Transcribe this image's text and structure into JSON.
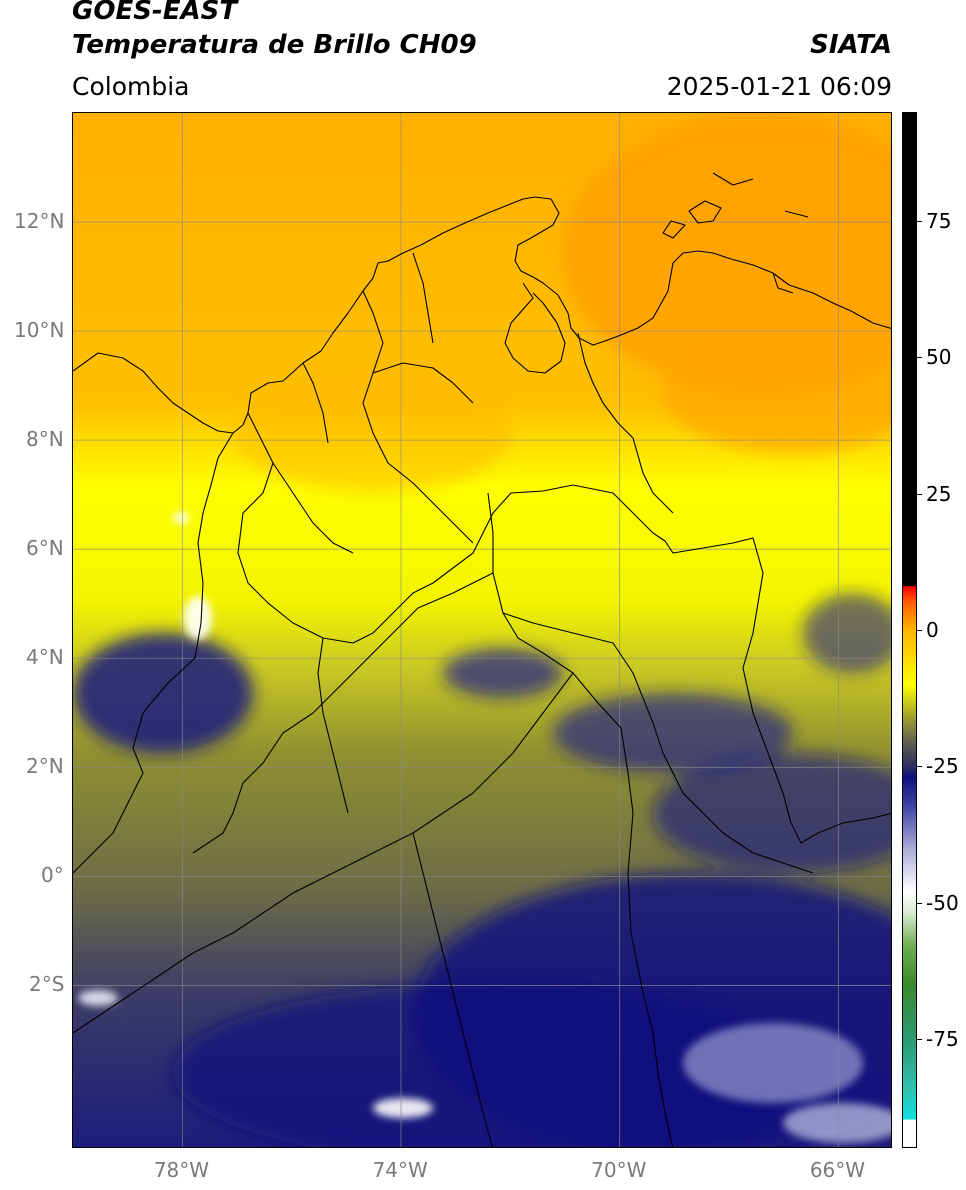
{
  "header": {
    "satellite": "GOES-EAST",
    "product": "Temperatura de Brillo CH09",
    "region": "Colombia",
    "org": "SIATA",
    "datetime": "2025-01-21 06:09"
  },
  "map": {
    "lon_range": [
      -80,
      -65
    ],
    "lat_range": [
      -5,
      14
    ],
    "lon_ticks": [
      {
        "value": -78,
        "label": "78°W"
      },
      {
        "value": -74,
        "label": "74°W"
      },
      {
        "value": -70,
        "label": "70°W"
      },
      {
        "value": -66,
        "label": "66°W"
      }
    ],
    "lat_ticks": [
      {
        "value": 12,
        "label": "12°N"
      },
      {
        "value": 10,
        "label": "10°N"
      },
      {
        "value": 8,
        "label": "8°N"
      },
      {
        "value": 6,
        "label": "6°N"
      },
      {
        "value": 4,
        "label": "4°N"
      },
      {
        "value": 2,
        "label": "2°N"
      },
      {
        "value": 0,
        "label": "0°"
      },
      {
        "value": -2,
        "label": "2°S"
      }
    ]
  },
  "colorbar": {
    "range": [
      -95,
      95
    ],
    "ticks": [
      {
        "value": 75,
        "label": "75"
      },
      {
        "value": 50,
        "label": "50"
      },
      {
        "value": 25,
        "label": "25"
      },
      {
        "value": 0,
        "label": "0"
      },
      {
        "value": -25,
        "label": "-25"
      },
      {
        "value": -50,
        "label": "-50"
      },
      {
        "value": -75,
        "label": "-75"
      }
    ],
    "stops": [
      {
        "value": -95,
        "color": "#ffffff"
      },
      {
        "value": -90,
        "color": "#ffffff"
      },
      {
        "value": -89.9,
        "color": "#12e0e0"
      },
      {
        "value": -84,
        "color": "#2fbfae"
      },
      {
        "value": -75,
        "color": "#2a9a70"
      },
      {
        "value": -65,
        "color": "#3a8a2c"
      },
      {
        "value": -58,
        "color": "#6fae55"
      },
      {
        "value": -52,
        "color": "#d8ecd0"
      },
      {
        "value": -48,
        "color": "#ffffff"
      },
      {
        "value": -40,
        "color": "#a8aad8"
      },
      {
        "value": -32,
        "color": "#3b3fa0"
      },
      {
        "value": -27,
        "color": "#10107e"
      },
      {
        "value": -25,
        "color": "#303060"
      },
      {
        "value": -21,
        "color": "#5a5a50"
      },
      {
        "value": -16,
        "color": "#a0a030"
      },
      {
        "value": -10,
        "color": "#ffff00"
      },
      {
        "value": 0,
        "color": "#ffb400"
      },
      {
        "value": 5,
        "color": "#ff6000"
      },
      {
        "value": 8,
        "color": "#ff0000"
      },
      {
        "value": 8.1,
        "color": "#000000"
      },
      {
        "value": 95,
        "color": "#000000"
      }
    ]
  }
}
